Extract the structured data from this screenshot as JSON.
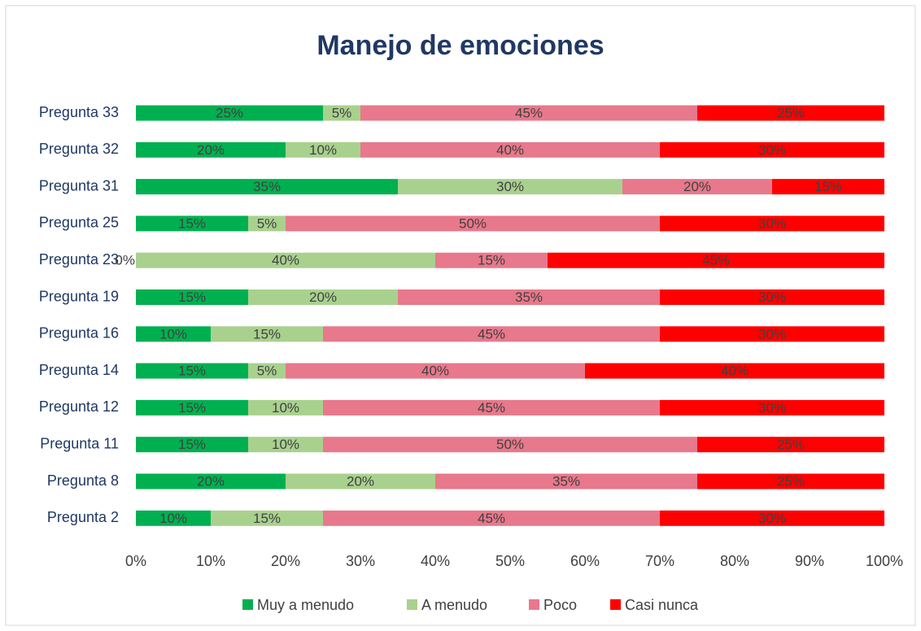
{
  "chart_data": {
    "type": "bar",
    "orientation": "horizontal",
    "stacked": true,
    "title": "Manejo de emociones",
    "categories": [
      "Pregunta 33",
      "Pregunta 32",
      "Pregunta 31",
      "Pregunta 25",
      "Pregunta 23",
      "Pregunta 19",
      "Pregunta 16",
      "Pregunta 14",
      "Pregunta 12",
      "Pregunta 11",
      "Pregunta 8",
      "Pregunta 2"
    ],
    "series": [
      {
        "name": "Muy a menudo",
        "color": "#00b050",
        "values": [
          25,
          20,
          35,
          15,
          0,
          15,
          10,
          15,
          15,
          15,
          20,
          10
        ],
        "value_labels": [
          "25%",
          "20%",
          "35%",
          "15%",
          "0%",
          "15%",
          "10%",
          "15%",
          "15%",
          "15%",
          "20%",
          "10%"
        ]
      },
      {
        "name": "A menudo",
        "color": "#a9d18e",
        "values": [
          5,
          10,
          30,
          5,
          40,
          20,
          15,
          5,
          10,
          10,
          20,
          15
        ],
        "value_labels": [
          "5%",
          "10%",
          "30%",
          "5%",
          "40%",
          "20%",
          "15%",
          "5%",
          "10%",
          "10%",
          "20%",
          "15%"
        ]
      },
      {
        "name": "Poco",
        "color": "#e8788b",
        "values": [
          45,
          40,
          20,
          50,
          15,
          35,
          45,
          40,
          45,
          50,
          35,
          45
        ],
        "value_labels": [
          "45%",
          "40%",
          "20%",
          "50%",
          "15%",
          "35%",
          "45%",
          "40%",
          "45%",
          "50%",
          "35%",
          "45%"
        ]
      },
      {
        "name": "Casi nunca",
        "color": "#ff0000",
        "values": [
          25,
          30,
          15,
          30,
          45,
          30,
          30,
          40,
          30,
          25,
          25,
          30
        ],
        "value_labels": [
          "25%",
          "30%",
          "15%",
          "30%",
          "45%",
          "30%",
          "30%",
          "40%",
          "30%",
          "25%",
          "25%",
          "30%"
        ]
      }
    ],
    "xlim": [
      0,
      100
    ],
    "xticks": [
      {
        "value": 0,
        "label": "0%"
      },
      {
        "value": 10,
        "label": "10%"
      },
      {
        "value": 20,
        "label": "20%"
      },
      {
        "value": 30,
        "label": "30%"
      },
      {
        "value": 40,
        "label": "40%"
      },
      {
        "value": 50,
        "label": "50%"
      },
      {
        "value": 60,
        "label": "60%"
      },
      {
        "value": 70,
        "label": "70%"
      },
      {
        "value": 80,
        "label": "80%"
      },
      {
        "value": 90,
        "label": "90%"
      },
      {
        "value": 100,
        "label": "100%"
      }
    ],
    "legend": "bottom"
  }
}
